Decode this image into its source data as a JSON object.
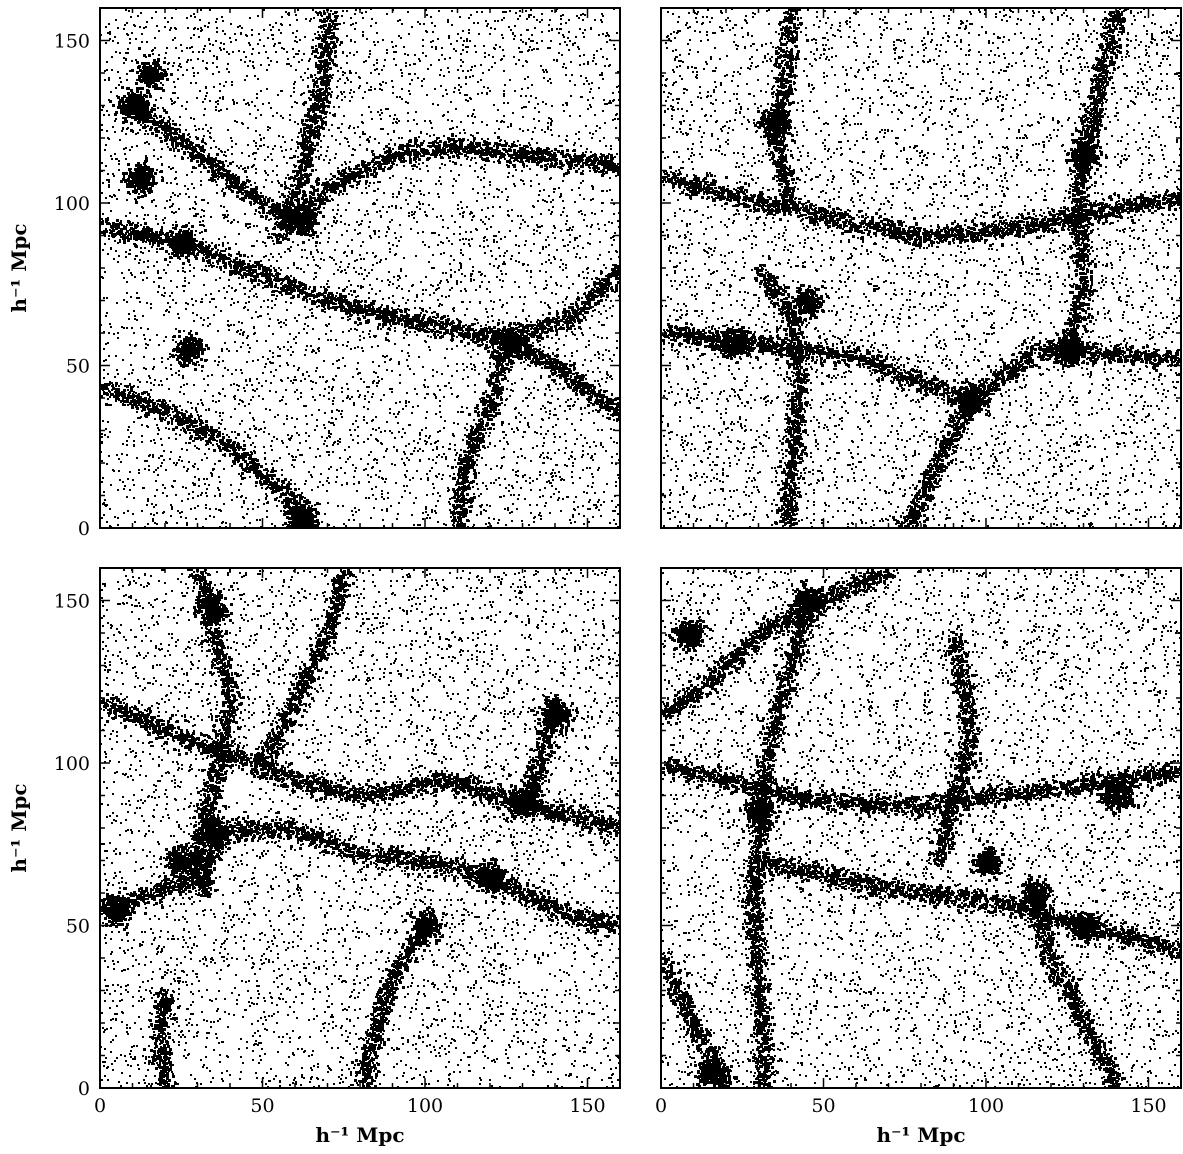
{
  "chart_data": [
    {
      "type": "scatter",
      "panel": "top-left",
      "title": "",
      "xlabel": "",
      "ylabel": "h⁻¹ Mpc",
      "xlim": [
        0,
        160
      ],
      "ylim": [
        0,
        160
      ],
      "x_ticks": [],
      "y_ticks": [
        "0",
        "50",
        "100",
        "150"
      ],
      "grid": false,
      "seed": 11,
      "filaments": [
        [
          [
            0,
            93
          ],
          [
            25,
            88
          ],
          [
            45,
            80
          ],
          [
            65,
            72
          ],
          [
            90,
            65
          ],
          [
            115,
            60
          ],
          [
            125,
            58
          ],
          [
            145,
            65
          ],
          [
            160,
            80
          ]
        ],
        [
          [
            0,
            44
          ],
          [
            20,
            36
          ],
          [
            40,
            25
          ],
          [
            58,
            10
          ],
          [
            62,
            0
          ]
        ],
        [
          [
            60,
            95
          ],
          [
            70,
            105
          ],
          [
            90,
            115
          ],
          [
            110,
            118
          ],
          [
            130,
            115
          ],
          [
            160,
            112
          ]
        ],
        [
          [
            10,
            130
          ],
          [
            30,
            115
          ],
          [
            50,
            100
          ],
          [
            60,
            95
          ]
        ],
        [
          [
            70,
            160
          ],
          [
            68,
            135
          ],
          [
            62,
            110
          ],
          [
            55,
            90
          ]
        ],
        [
          [
            125,
            58
          ],
          [
            120,
            40
          ],
          [
            112,
            20
          ],
          [
            110,
            0
          ]
        ],
        [
          [
            125,
            58
          ],
          [
            140,
            50
          ],
          [
            160,
            35
          ]
        ]
      ],
      "clusters": [
        [
          62,
          95
        ],
        [
          25,
          88
        ],
        [
          12,
          108
        ],
        [
          10,
          130
        ],
        [
          27,
          55
        ],
        [
          125,
          58
        ],
        [
          62,
          3
        ],
        [
          15,
          140
        ]
      ]
    },
    {
      "type": "scatter",
      "panel": "top-right",
      "title": "",
      "xlabel": "",
      "ylabel": "",
      "xlim": [
        0,
        160
      ],
      "ylim": [
        0,
        160
      ],
      "x_ticks": [],
      "y_ticks": [],
      "grid": false,
      "seed": 23,
      "filaments": [
        [
          [
            0,
            108
          ],
          [
            25,
            102
          ],
          [
            55,
            95
          ],
          [
            80,
            90
          ],
          [
            105,
            92
          ],
          [
            130,
            97
          ],
          [
            160,
            102
          ]
        ],
        [
          [
            0,
            60
          ],
          [
            25,
            58
          ],
          [
            40,
            55
          ],
          [
            60,
            53
          ],
          [
            80,
            45
          ],
          [
            95,
            40
          ],
          [
            115,
            55
          ],
          [
            125,
            55
          ],
          [
            160,
            52
          ]
        ],
        [
          [
            40,
            160
          ],
          [
            38,
            140
          ],
          [
            35,
            120
          ],
          [
            40,
            100
          ]
        ],
        [
          [
            125,
            55
          ],
          [
            130,
            75
          ],
          [
            128,
            100
          ],
          [
            130,
            115
          ],
          [
            140,
            160
          ]
        ],
        [
          [
            95,
            40
          ],
          [
            85,
            20
          ],
          [
            75,
            0
          ]
        ],
        [
          [
            30,
            80
          ],
          [
            40,
            65
          ],
          [
            42,
            45
          ],
          [
            40,
            20
          ],
          [
            38,
            0
          ]
        ]
      ],
      "clusters": [
        [
          130,
          115
        ],
        [
          125,
          55
        ],
        [
          35,
          125
        ],
        [
          45,
          70
        ],
        [
          22,
          57
        ],
        [
          95,
          40
        ]
      ]
    },
    {
      "type": "scatter",
      "panel": "bottom-left",
      "title": "",
      "xlabel": "h⁻¹ Mpc",
      "ylabel": "h⁻¹ Mpc",
      "xlim": [
        0,
        160
      ],
      "ylim": [
        0,
        160
      ],
      "x_ticks": [
        "0",
        "50",
        "100",
        "150"
      ],
      "y_ticks": [
        "0",
        "50",
        "100",
        "150"
      ],
      "grid": false,
      "seed": 37,
      "filaments": [
        [
          [
            0,
            120
          ],
          [
            20,
            110
          ],
          [
            40,
            103
          ],
          [
            60,
            95
          ],
          [
            80,
            90
          ],
          [
            105,
            95
          ],
          [
            130,
            88
          ],
          [
            160,
            80
          ]
        ],
        [
          [
            0,
            55
          ],
          [
            15,
            60
          ],
          [
            30,
            65
          ],
          [
            35,
            75
          ],
          [
            40,
            80
          ],
          [
            60,
            80
          ],
          [
            80,
            72
          ],
          [
            100,
            70
          ],
          [
            120,
            65
          ],
          [
            140,
            55
          ],
          [
            160,
            50
          ]
        ],
        [
          [
            30,
            160
          ],
          [
            35,
            140
          ],
          [
            40,
            120
          ],
          [
            35,
            95
          ],
          [
            30,
            75
          ],
          [
            32,
            60
          ]
        ],
        [
          [
            75,
            160
          ],
          [
            70,
            140
          ],
          [
            60,
            120
          ],
          [
            50,
            100
          ]
        ],
        [
          [
            100,
            50
          ],
          [
            90,
            35
          ],
          [
            85,
            20
          ],
          [
            80,
            0
          ]
        ],
        [
          [
            20,
            30
          ],
          [
            18,
            15
          ],
          [
            20,
            0
          ]
        ],
        [
          [
            140,
            120
          ],
          [
            135,
            100
          ],
          [
            130,
            88
          ]
        ]
      ],
      "clusters": [
        [
          35,
          148
        ],
        [
          35,
          80
        ],
        [
          25,
          70
        ],
        [
          130,
          88
        ],
        [
          140,
          115
        ],
        [
          5,
          55
        ],
        [
          120,
          65
        ],
        [
          100,
          50
        ]
      ]
    },
    {
      "type": "scatter",
      "panel": "bottom-right",
      "title": "",
      "xlabel": "h⁻¹ Mpc",
      "ylabel": "",
      "xlim": [
        0,
        160
      ],
      "ylim": [
        0,
        160
      ],
      "x_ticks": [
        "0",
        "50",
        "100",
        "150"
      ],
      "y_ticks": [],
      "grid": false,
      "seed": 51,
      "filaments": [
        [
          [
            0,
            115
          ],
          [
            15,
            125
          ],
          [
            30,
            140
          ],
          [
            45,
            148
          ],
          [
            60,
            155
          ],
          [
            70,
            160
          ]
        ],
        [
          [
            45,
            148
          ],
          [
            38,
            125
          ],
          [
            32,
            100
          ],
          [
            30,
            80
          ],
          [
            28,
            60
          ],
          [
            30,
            30
          ],
          [
            32,
            0
          ]
        ],
        [
          [
            0,
            100
          ],
          [
            20,
            95
          ],
          [
            40,
            90
          ],
          [
            60,
            88
          ],
          [
            80,
            87
          ],
          [
            100,
            90
          ],
          [
            120,
            92
          ],
          [
            140,
            95
          ],
          [
            160,
            98
          ]
        ],
        [
          [
            30,
            70
          ],
          [
            55,
            65
          ],
          [
            80,
            60
          ],
          [
            100,
            58
          ],
          [
            115,
            55
          ],
          [
            130,
            50
          ],
          [
            150,
            45
          ],
          [
            160,
            42
          ]
        ],
        [
          [
            0,
            40
          ],
          [
            10,
            20
          ],
          [
            20,
            0
          ]
        ],
        [
          [
            90,
            140
          ],
          [
            95,
            110
          ],
          [
            90,
            90
          ],
          [
            85,
            70
          ]
        ],
        [
          [
            115,
            55
          ],
          [
            120,
            40
          ],
          [
            130,
            20
          ],
          [
            140,
            0
          ]
        ]
      ],
      "clusters": [
        [
          45,
          150
        ],
        [
          30,
          85
        ],
        [
          100,
          70
        ],
        [
          130,
          50
        ],
        [
          115,
          60
        ],
        [
          140,
          90
        ],
        [
          15,
          5
        ],
        [
          8,
          140
        ]
      ]
    }
  ]
}
